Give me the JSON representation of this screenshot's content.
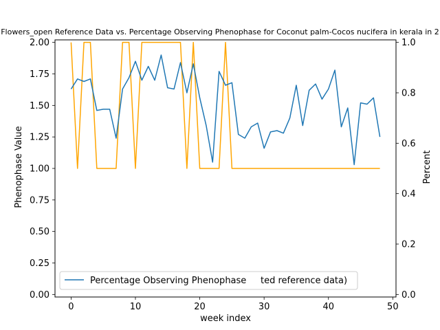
{
  "chart_data": {
    "type": "line",
    "title": "Flowers_open Reference Data vs. Percentage Observing Phenophase for Coconut palm-Cocos nucifera in kerala in 2",
    "xlabel": "week index",
    "ylabel_left": "Phenophase Value",
    "ylabel_right": "Percent",
    "xlim": [
      -2.5,
      50.5
    ],
    "ylim_left": [
      -0.02,
      2.02
    ],
    "ylim_right": [
      -0.01,
      1.01
    ],
    "x_ticks": [
      0,
      10,
      20,
      30,
      40,
      50
    ],
    "y_ticks_left": [
      0.0,
      0.25,
      0.5,
      0.75,
      1.0,
      1.25,
      1.5,
      1.75,
      2.0
    ],
    "y_ticks_right": [
      0.0,
      0.2,
      0.4,
      0.6,
      0.8,
      1.0
    ],
    "grid": false,
    "legend_placement": "lower-left",
    "series": [
      {
        "name": "",
        "axis": "left",
        "color": "#ffa500",
        "x": [
          0,
          1,
          2,
          3,
          4,
          5,
          6,
          7,
          8,
          9,
          10,
          11,
          12,
          13,
          14,
          15,
          16,
          17,
          18,
          19,
          20,
          21,
          22,
          23,
          24,
          25,
          26,
          27,
          28,
          29,
          30,
          31,
          32,
          33,
          34,
          35,
          36,
          37,
          38,
          39,
          40,
          41,
          42,
          43,
          44,
          45,
          46,
          47,
          48
        ],
        "values": [
          2,
          1,
          2,
          2,
          1,
          1,
          1,
          1,
          2,
          2,
          1,
          2,
          2,
          2,
          2,
          2,
          2,
          2,
          1,
          2,
          1,
          1,
          1,
          1,
          2,
          1,
          1,
          1,
          1,
          1,
          1,
          1,
          1,
          1,
          1,
          1,
          1,
          1,
          1,
          1,
          1,
          1,
          1,
          1,
          1,
          1,
          1,
          1,
          1
        ]
      },
      {
        "name": "Percentage Observing Phenophase",
        "axis": "right",
        "color": "#1f77b4",
        "x": [
          0,
          1,
          2,
          3,
          4,
          5,
          6,
          7,
          8,
          9,
          10,
          11,
          12,
          13,
          14,
          15,
          16,
          17,
          18,
          19,
          20,
          21,
          22,
          23,
          24,
          25,
          26,
          27,
          28,
          29,
          30,
          31,
          32,
          33,
          34,
          35,
          36,
          37,
          38,
          39,
          40,
          41,
          42,
          43,
          44,
          45,
          46,
          47,
          48
        ],
        "values": [
          0.815,
          0.855,
          0.845,
          0.855,
          0.73,
          0.735,
          0.735,
          0.62,
          0.815,
          0.86,
          0.925,
          0.85,
          0.905,
          0.85,
          0.95,
          0.82,
          0.815,
          0.92,
          0.8,
          0.915,
          0.78,
          0.67,
          0.525,
          0.885,
          0.83,
          0.84,
          0.635,
          0.62,
          0.665,
          0.68,
          0.58,
          0.645,
          0.65,
          0.64,
          0.7,
          0.83,
          0.67,
          0.81,
          0.835,
          0.775,
          0.815,
          0.89,
          0.665,
          0.74,
          0.515,
          0.76,
          0.755,
          0.78,
          0.625
        ]
      }
    ]
  },
  "legend": {
    "visible_label": "Percentage Observing Phenophase",
    "trailing_text": "ted reference data)"
  }
}
